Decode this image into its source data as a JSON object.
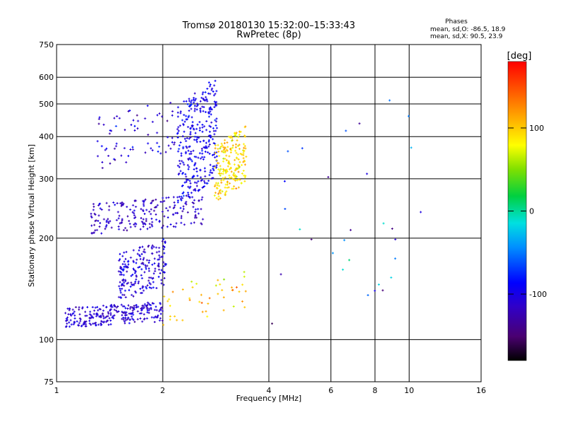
{
  "chart_data": {
    "type": "scatter",
    "title": "Tromsø 20180130 15:32:00–15:33:43",
    "subtitle": "RwPretec (8p)",
    "xlabel": "Frequency [MHz]",
    "ylabel": "Stationary phase Virtual Height [km]",
    "x_scale": "log",
    "y_scale": "log",
    "xlim": [
      1,
      16
    ],
    "ylim": [
      75,
      750
    ],
    "x_ticks": [
      1,
      2,
      4,
      6,
      8,
      10,
      16
    ],
    "y_ticks": [
      75,
      100,
      200,
      300,
      400,
      500,
      600,
      750
    ],
    "grid": true,
    "colorbar": {
      "title": "[deg]",
      "range": [
        -180,
        180
      ],
      "ticks": [
        100,
        0,
        -100
      ],
      "colormap": "rainbow"
    },
    "info_box": {
      "title": "Phases",
      "line1": "mean, sd,O: -86.5, 18.9",
      "line2": "mean, sd,X:  90.5, 23.9"
    },
    "clusters": [
      {
        "name": "E-layer trace",
        "x_range": [
          1.05,
          2.0
        ],
        "y_range": [
          108,
          130
        ],
        "phase_mean": -110,
        "phase_sd": 15,
        "count": 260
      },
      {
        "name": "Es/E2 trace",
        "x_range": [
          1.5,
          2.05
        ],
        "y_range": [
          130,
          200
        ],
        "phase_mean": -105,
        "phase_sd": 18,
        "count": 200
      },
      {
        "name": "F1 trace",
        "x_range": [
          1.25,
          2.6
        ],
        "y_range": [
          205,
          270
        ],
        "phase_mean": -115,
        "phase_sd": 15,
        "count": 200
      },
      {
        "name": "F2 O-mode",
        "x_range": [
          2.2,
          2.85
        ],
        "y_range": [
          240,
          620
        ],
        "phase_mean": -95,
        "phase_sd": 15,
        "count": 320
      },
      {
        "name": "F2 X-mode",
        "x_range": [
          2.8,
          3.45
        ],
        "y_range": [
          255,
          430
        ],
        "phase_mean": 95,
        "phase_sd": 25,
        "count": 200
      },
      {
        "name": "scattered F",
        "x_range": [
          1.3,
          2.2
        ],
        "y_range": [
          320,
          520
        ],
        "phase_mean": -110,
        "phase_sd": 20,
        "count": 70
      },
      {
        "name": "scattered E",
        "x_range": [
          2.0,
          3.5
        ],
        "y_range": [
          110,
          160
        ],
        "phase_mean": 100,
        "phase_sd": 30,
        "count": 45
      },
      {
        "name": "sporadic echoes",
        "x_range": [
          4.0,
          12.0
        ],
        "y_range": [
          100,
          600
        ],
        "phase_mean": -60,
        "phase_sd": 60,
        "count": 30
      }
    ]
  }
}
